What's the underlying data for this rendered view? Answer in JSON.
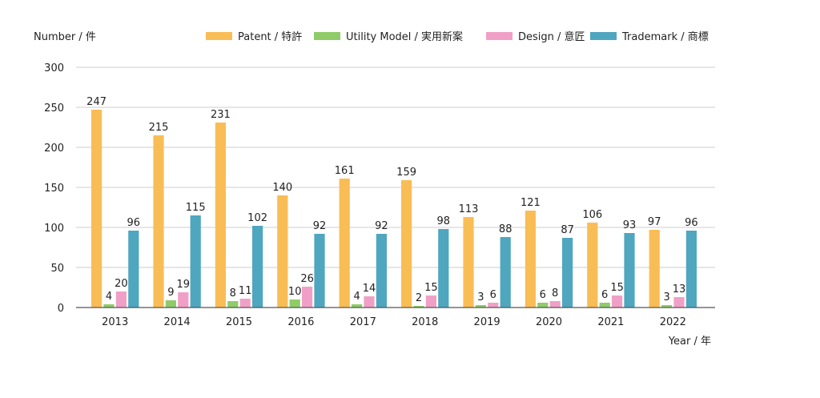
{
  "chart_data": {
    "type": "bar",
    "ylabel": "Number / 件",
    "xlabel": "Year / 年",
    "ylim": [
      0,
      300
    ],
    "yticks": [
      "0",
      "50",
      "100",
      "150",
      "200",
      "250",
      "300"
    ],
    "grid": true,
    "legend_position": "top-right",
    "categories": [
      "2013",
      "2014",
      "2015",
      "2016",
      "2017",
      "2018",
      "2019",
      "2020",
      "2021",
      "2022"
    ],
    "series": [
      {
        "name": "Patent / 特許",
        "color": "#f9bd55",
        "values": [
          247,
          215,
          231,
          140,
          161,
          159,
          113,
          121,
          106,
          97
        ]
      },
      {
        "name": "Utility Model / 実用新案",
        "color": "#8fcb68",
        "values": [
          4,
          9,
          8,
          10,
          4,
          2,
          3,
          6,
          6,
          3
        ]
      },
      {
        "name": "Design / 意匠",
        "color": "#f0a0c6",
        "values": [
          20,
          19,
          11,
          26,
          14,
          15,
          6,
          8,
          15,
          13
        ]
      },
      {
        "name": "Trademark / 商標",
        "color": "#4fa6bf",
        "values": [
          96,
          115,
          102,
          92,
          92,
          98,
          88,
          87,
          93,
          96
        ]
      }
    ]
  }
}
